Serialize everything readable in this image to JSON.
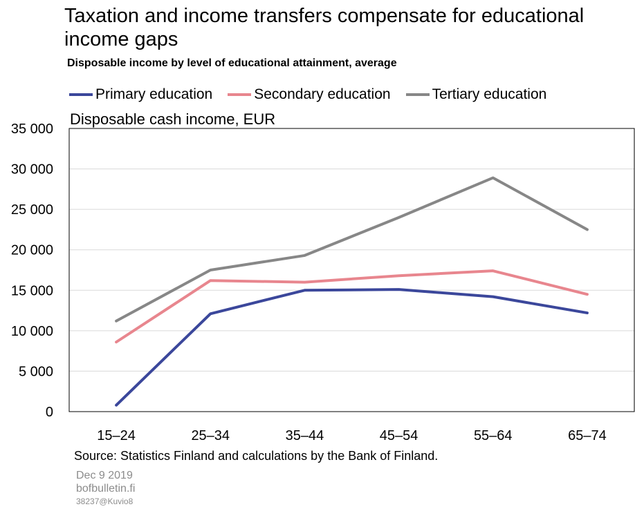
{
  "header": {
    "title": "Taxation and income transfers compensate for educational income gaps",
    "subtitle": "Disposable income by level of educational attainment, average"
  },
  "footer": {
    "source": "Source: Statistics Finland and calculations by the Bank of Finland.",
    "date": "Dec 9 2019",
    "site": "bofbulletin.fi",
    "figure_id": "38237@Kuvio8"
  },
  "chart_data": {
    "type": "line",
    "title": "Taxation and income transfers compensate for educational income gaps",
    "subtitle": "Disposable income by level of educational attainment, average",
    "ylabel": "Disposable cash income, EUR",
    "xlabel": "",
    "categories": [
      "15–24",
      "25–34",
      "35–44",
      "45–54",
      "55–64",
      "65–74"
    ],
    "ylim": [
      0,
      35000
    ],
    "yticks": [
      0,
      5000,
      10000,
      15000,
      20000,
      25000,
      30000,
      35000
    ],
    "ytick_labels": [
      "0",
      "5 000",
      "10 000",
      "15 000",
      "20 000",
      "25 000",
      "30 000",
      "35 000"
    ],
    "grid": true,
    "legend_position": "top",
    "series": [
      {
        "name": "Primary education",
        "color": "#3b479b",
        "values": [
          800,
          12100,
          15000,
          15100,
          14200,
          12200
        ]
      },
      {
        "name": "Secondary education",
        "color": "#e8868e",
        "values": [
          8600,
          16200,
          16000,
          16800,
          17400,
          14500
        ]
      },
      {
        "name": "Tertiary education",
        "color": "#878787",
        "values": [
          11200,
          17500,
          19300,
          24000,
          28900,
          22500
        ]
      }
    ]
  }
}
